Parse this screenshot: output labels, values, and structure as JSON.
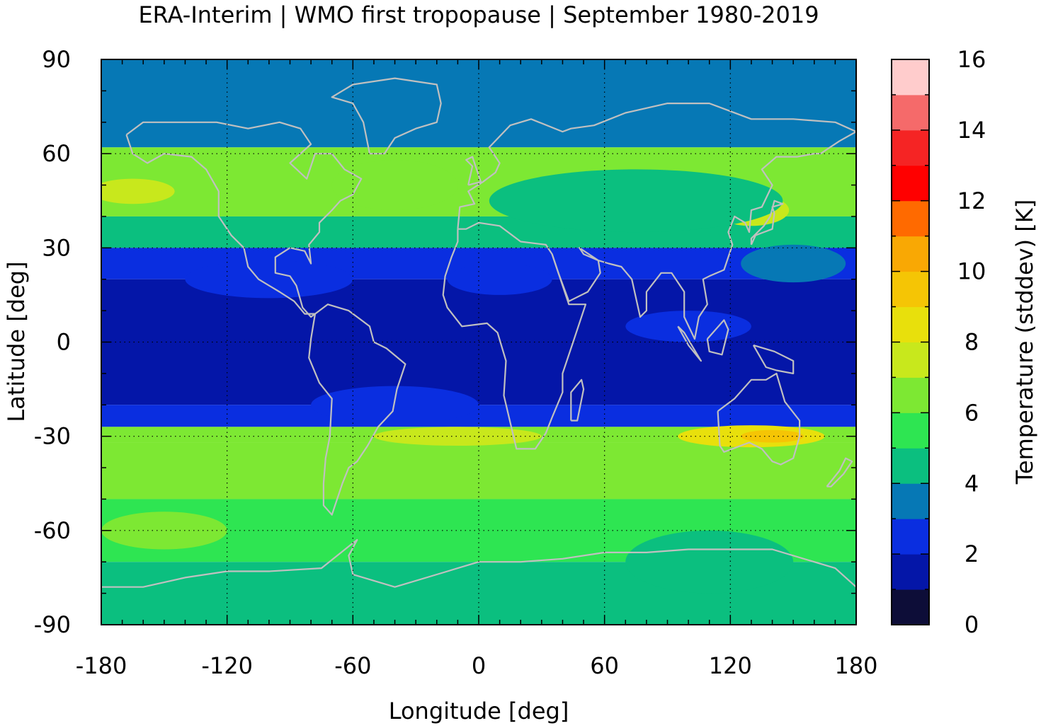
{
  "title": "ERA-Interim | WMO first tropopause | September 1980-2019",
  "chart_data": {
    "type": "heatmap",
    "title": "ERA-Interim | WMO first tropopause | September 1980-2019",
    "xlabel": "Longitude [deg]",
    "ylabel": "Latitude [deg]",
    "xlim": [
      -180,
      180
    ],
    "ylim": [
      -90,
      90
    ],
    "x_ticks": [
      "-180",
      "-120",
      "-60",
      "0",
      "60",
      "120",
      "180"
    ],
    "y_ticks": [
      "90",
      "60",
      "30",
      "0",
      "-30",
      "-60",
      "-90"
    ],
    "grid": true,
    "overlay": "coastlines",
    "colorbar": {
      "label": "Temperature (stddev) [K]",
      "ticks": [
        "0",
        "2",
        "4",
        "6",
        "8",
        "10",
        "12",
        "14",
        "16"
      ],
      "range": [
        0,
        16
      ],
      "step": 1,
      "colors": [
        "#0d0d38",
        "#0416a8",
        "#0a2ee0",
        "#0678b5",
        "#0bbf7f",
        "#2ee552",
        "#7de833",
        "#c8e81c",
        "#e8e00c",
        "#f5c505",
        "#f9a804",
        "#ff6a00",
        "#ff0000",
        "#f52424",
        "#f56a6a",
        "#ffcccc"
      ]
    },
    "zonal_pattern": {
      "description_lat_bands": [
        {
          "lat": [
            62,
            90
          ],
          "value": 3.5
        },
        {
          "lat": [
            40,
            62
          ],
          "value": 6.0
        },
        {
          "lat": [
            30,
            40
          ],
          "value": 4.5
        },
        {
          "lat": [
            20,
            30
          ],
          "value": 2.5
        },
        {
          "lat": [
            -20,
            20
          ],
          "value": 1.5
        },
        {
          "lat": [
            -27,
            -20
          ],
          "value": 2.5
        },
        {
          "lat": [
            -32,
            -27
          ],
          "value": 6.5
        },
        {
          "lat": [
            -50,
            -32
          ],
          "value": 6.0
        },
        {
          "lat": [
            -70,
            -50
          ],
          "value": 5.5
        },
        {
          "lat": [
            -90,
            -70
          ],
          "value": 4.5
        }
      ]
    }
  }
}
